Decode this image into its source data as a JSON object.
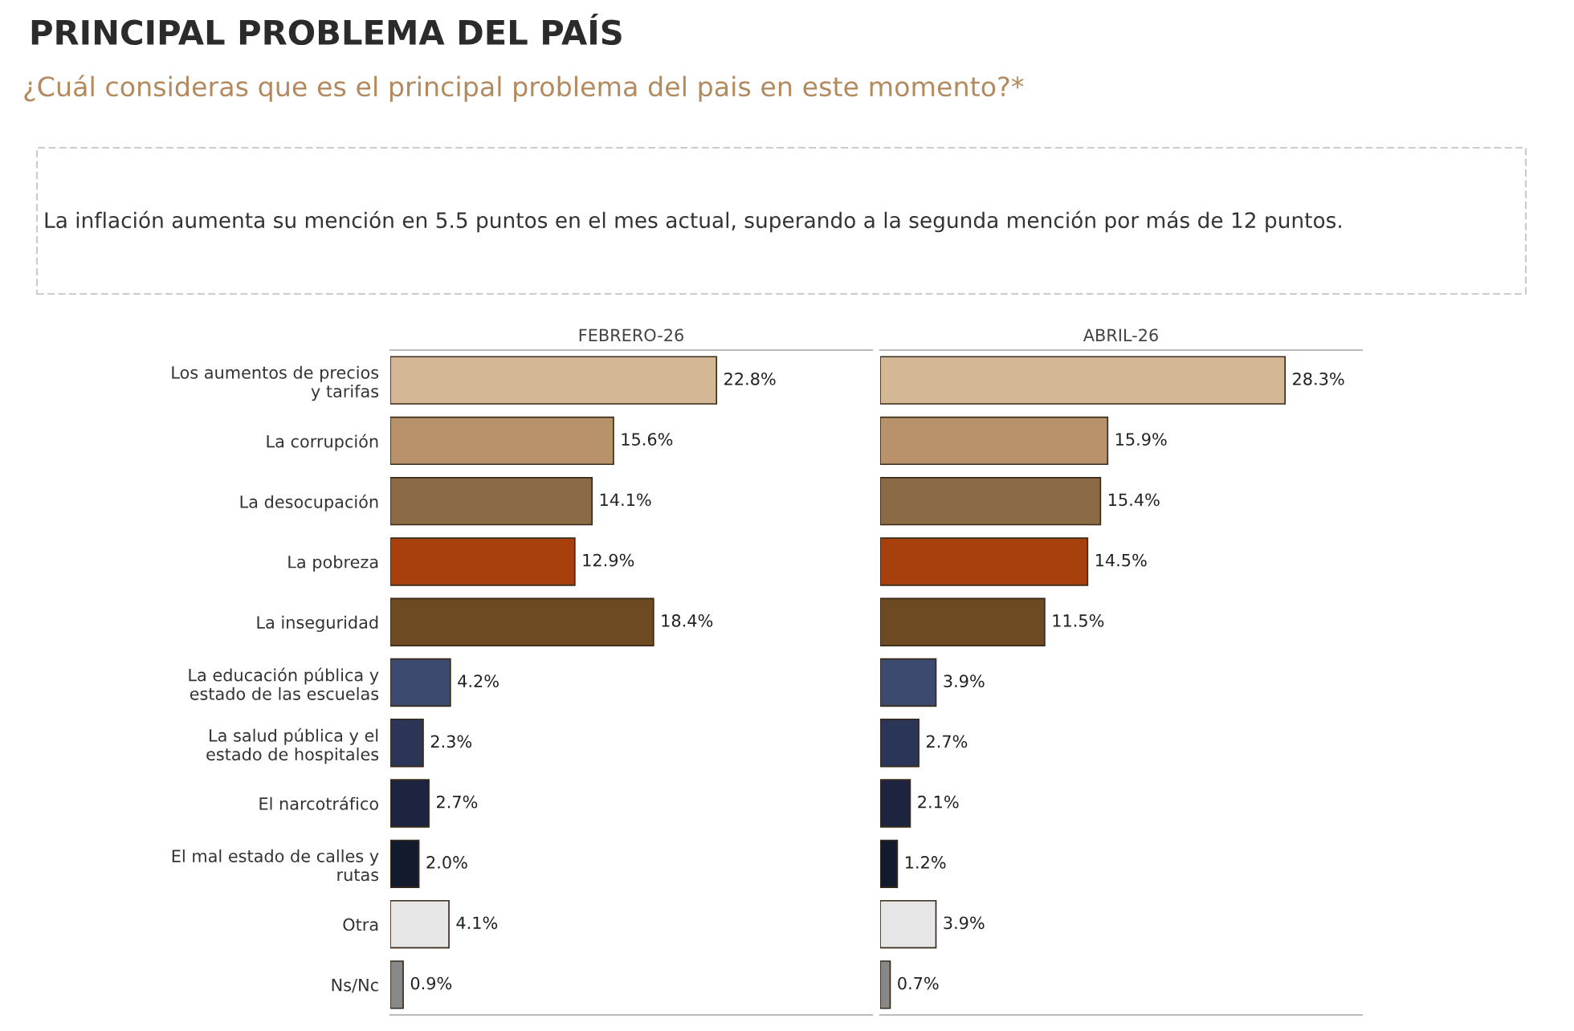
{
  "chart_data": [
    {
      "type": "bar",
      "orientation": "horizontal",
      "title": "FEBRERO-26",
      "tick_labels": "y",
      "annotations": [
        "PRINCIPAL PROBLEMA DEL PAÍS",
        "¿Cuál consideras que es el principal problema del pais en este momento?*",
        "La inflación aumenta su mención en 5.5 puntos en el mes actual, superando a la segunda mención por más de 12 puntos."
      ],
      "categories": [
        "Los aumentos de precios\ny tarifas",
        "La corrupción",
        "La desocupación",
        "La pobreza",
        "La inseguridad",
        "La educación pública y\nestado de las escuelas",
        "La salud pública y el\nestado de hospitales",
        "El narcotráfico",
        "El mal estado de calles y\nrutas",
        "Otra",
        "Ns/Nc"
      ],
      "values": [
        22.8,
        15.6,
        14.1,
        12.9,
        18.4,
        4.2,
        2.3,
        2.7,
        2.0,
        4.1,
        0.9
      ],
      "value_labels": [
        "22.8%",
        "15.6%",
        "14.1%",
        "12.9%",
        "18.4%",
        "4.2%",
        "2.3%",
        "2.7%",
        "2.0%",
        "4.1%",
        "0.9%"
      ],
      "colors": [
        "#d4b896",
        "#b8926a",
        "#8b6b45",
        "#a8400e",
        "#6e4a22",
        "#3b4a6e",
        "#2a3558",
        "#1c2440",
        "#121a2e",
        "#e6e6e6",
        "#888888"
      ]
    },
    {
      "type": "bar",
      "orientation": "horizontal",
      "title": "ABRIL-26",
      "tick_labels": false,
      "categories": [
        null,
        null,
        null,
        null,
        null,
        null,
        null,
        null,
        null,
        null,
        null
      ],
      "values": [
        28.3,
        15.9,
        15.4,
        14.5,
        11.5,
        3.9,
        2.7,
        2.1,
        1.2,
        3.9,
        0.7
      ],
      "value_labels": [
        "28.3%",
        "15.9%",
        "15.4%",
        "14.5%",
        "11.5%",
        "3.9%",
        "2.7%",
        "2.1%",
        "1.2%",
        "3.9%",
        "0.7%"
      ],
      "colors": [
        "#d4b896",
        "#b8926a",
        "#8b6b45",
        "#a8400e",
        "#6e4a22",
        "#3b4a6e",
        "#2a3558",
        "#1c2440",
        "#121a2e",
        "#e6e6e6",
        "#888888"
      ]
    }
  ]
}
